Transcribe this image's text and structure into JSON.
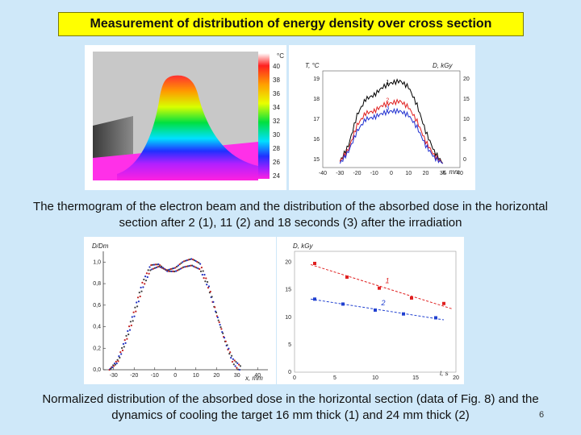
{
  "slide": {
    "title": "Measurement of distribution of energy density over cross section",
    "caption_top": "The thermogram of the electron beam and the distribution of the absorbed dose in the horizontal section after 2 (1), 11 (2) and 18 seconds (3) after the irradiation",
    "caption_bottom_line1": "Normalized distribution of the absorbed dose in the horizontal section (data of Fig. 8) and the",
    "caption_bottom_line2": "dynamics of cooling the target 16 mm thick (1) and 24 mm thick (2)",
    "page_number": "6",
    "colors": {
      "background": "#cfe8f9",
      "title_bg": "#ffff00"
    }
  },
  "chart_data": [
    {
      "type": "heatmap",
      "title": "thermogram",
      "colorbar_unit": "°C",
      "colorbar_ticks": [
        "40",
        "38",
        "36",
        "34",
        "32",
        "30",
        "28",
        "26",
        "24"
      ]
    },
    {
      "type": "line",
      "ylabel": "T, °C",
      "ylabel_right": "D, kGy",
      "xlabel": "x, mm",
      "x_ticks": [
        "-40",
        "-30",
        "-20",
        "-10",
        "0",
        "10",
        "20",
        "30",
        "40"
      ],
      "y_ticks": [
        "15",
        "16",
        "17",
        "18",
        "19"
      ],
      "y_ticks_right": [
        "0",
        "5",
        "10",
        "15",
        "20"
      ],
      "series": [
        {
          "name": "1",
          "color": "#000000",
          "x": [
            -30,
            -25,
            -20,
            -15,
            -10,
            -5,
            0,
            5,
            10,
            15,
            20,
            25,
            30
          ],
          "y": [
            15.1,
            15.9,
            17.4,
            18.2,
            18.4,
            18.8,
            19.0,
            19.1,
            18.8,
            17.9,
            16.6,
            15.6,
            15.0
          ]
        },
        {
          "name": "2",
          "color": "#e02020",
          "x": [
            -30,
            -25,
            -20,
            -15,
            -10,
            -5,
            0,
            5,
            10,
            15,
            20,
            25,
            30
          ],
          "y": [
            15.1,
            15.7,
            16.9,
            17.5,
            17.6,
            17.9,
            18.0,
            18.1,
            17.8,
            17.1,
            16.1,
            15.4,
            15.0
          ]
        },
        {
          "name": "3",
          "color": "#2030d0",
          "x": [
            -30,
            -25,
            -20,
            -15,
            -10,
            -5,
            0,
            5,
            10,
            15,
            20,
            25,
            30
          ],
          "y": [
            15.0,
            15.6,
            16.6,
            17.2,
            17.3,
            17.5,
            17.6,
            17.6,
            17.4,
            16.8,
            15.9,
            15.3,
            15.0
          ]
        }
      ]
    },
    {
      "type": "scatter",
      "ylabel": "D/Dm",
      "xlabel": "x, mm",
      "x_ticks": [
        "-30",
        "-20",
        "-10",
        "0",
        "10",
        "20",
        "30",
        "40"
      ],
      "y_ticks": [
        "0,0",
        "0,2",
        "0,4",
        "0,6",
        "0,8",
        "1,0"
      ],
      "xlim": [
        -35,
        45
      ],
      "ylim": [
        0,
        1.1
      ],
      "profile": [
        [
          -32,
          0.0
        ],
        [
          -28,
          0.08
        ],
        [
          -24,
          0.28
        ],
        [
          -20,
          0.52
        ],
        [
          -16,
          0.78
        ],
        [
          -12,
          0.95
        ],
        [
          -8,
          0.97
        ],
        [
          -4,
          0.92
        ],
        [
          0,
          0.93
        ],
        [
          4,
          0.98
        ],
        [
          8,
          1.0
        ],
        [
          12,
          0.96
        ],
        [
          16,
          0.78
        ],
        [
          20,
          0.52
        ],
        [
          24,
          0.28
        ],
        [
          28,
          0.08
        ],
        [
          32,
          0.0
        ]
      ]
    },
    {
      "type": "line",
      "ylabel": "D, kGy",
      "xlabel": "t, s",
      "x_ticks": [
        "0",
        "5",
        "10",
        "15",
        "20"
      ],
      "y_ticks": [
        "0",
        "5",
        "10",
        "15",
        "20"
      ],
      "xlim": [
        0,
        20
      ],
      "ylim": [
        0,
        22
      ],
      "series": [
        {
          "name": "1",
          "color": "#e02020",
          "x": [
            2.5,
            6.5,
            10.5,
            14.5,
            18.5
          ],
          "y": [
            19.8,
            17.3,
            15.3,
            13.5,
            12.5
          ]
        },
        {
          "name": "2",
          "color": "#2040d0",
          "x": [
            2.5,
            6,
            10,
            13.5,
            17.5
          ],
          "y": [
            13.3,
            12.4,
            11.3,
            10.6,
            9.9
          ]
        }
      ]
    }
  ]
}
